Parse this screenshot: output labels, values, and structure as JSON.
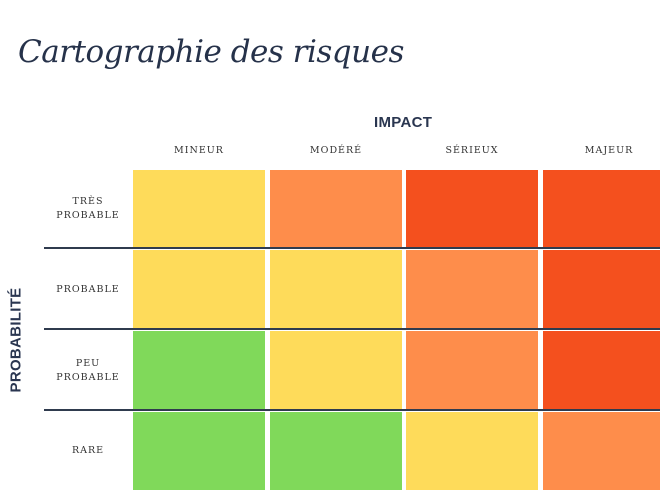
{
  "title": "Cartographie des risques",
  "axes": {
    "impact_label": "IMPACT",
    "probability_label": "PROBABILITÉ"
  },
  "columns": [
    "MINEUR",
    "MODÉRÉ",
    "SÉRIEUX",
    "MAJEUR"
  ],
  "rows": [
    {
      "label": "TRÈS\nPROBABLE",
      "levels": [
        "yellow",
        "orange",
        "red",
        "red"
      ]
    },
    {
      "label": "PROBABLE",
      "levels": [
        "yellow",
        "yellow",
        "orange",
        "red"
      ]
    },
    {
      "label": "PEU\nPROBABLE",
      "levels": [
        "green",
        "yellow",
        "orange",
        "red"
      ]
    },
    {
      "label": "RARE",
      "levels": [
        "green",
        "green",
        "yellow",
        "orange"
      ]
    }
  ],
  "colors": {
    "green": "#80d95a",
    "yellow": "#fedb5a",
    "orange": "#fe8d4b",
    "red": "#f4501e"
  }
}
